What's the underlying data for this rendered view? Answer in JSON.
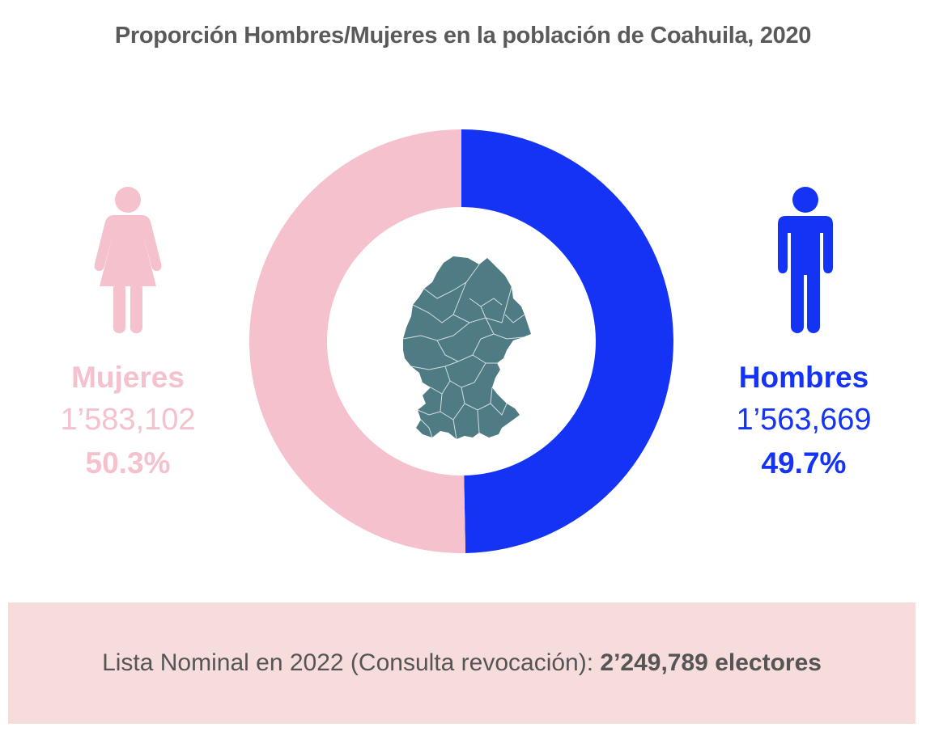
{
  "colors": {
    "women": "#f4c1cc",
    "men": "#1533f5",
    "map": "#4f7b84",
    "footer_bg": "#f7dcdc",
    "text_gray": "#5a5a5a"
  },
  "icons": {
    "women": "woman-icon",
    "men": "man-icon",
    "map": "coahuila-map"
  },
  "footer": {
    "prefix": "Lista Nominal en 2022 (Consulta revocación): ",
    "value": "2’249,789 electores"
  },
  "chart_data": {
    "type": "pie",
    "title": "Proporción Hombres/Mujeres en la población de Coahuila, 2020",
    "series": [
      {
        "name": "Hombres",
        "value": 1563669,
        "display_value": "1’563,669",
        "percent": 49.7,
        "display_percent": "49.7%",
        "color": "#1533f5"
      },
      {
        "name": "Mujeres",
        "value": 1583102,
        "display_value": "1’583,102",
        "percent": 50.3,
        "display_percent": "50.3%",
        "color": "#f4c1cc"
      }
    ]
  }
}
